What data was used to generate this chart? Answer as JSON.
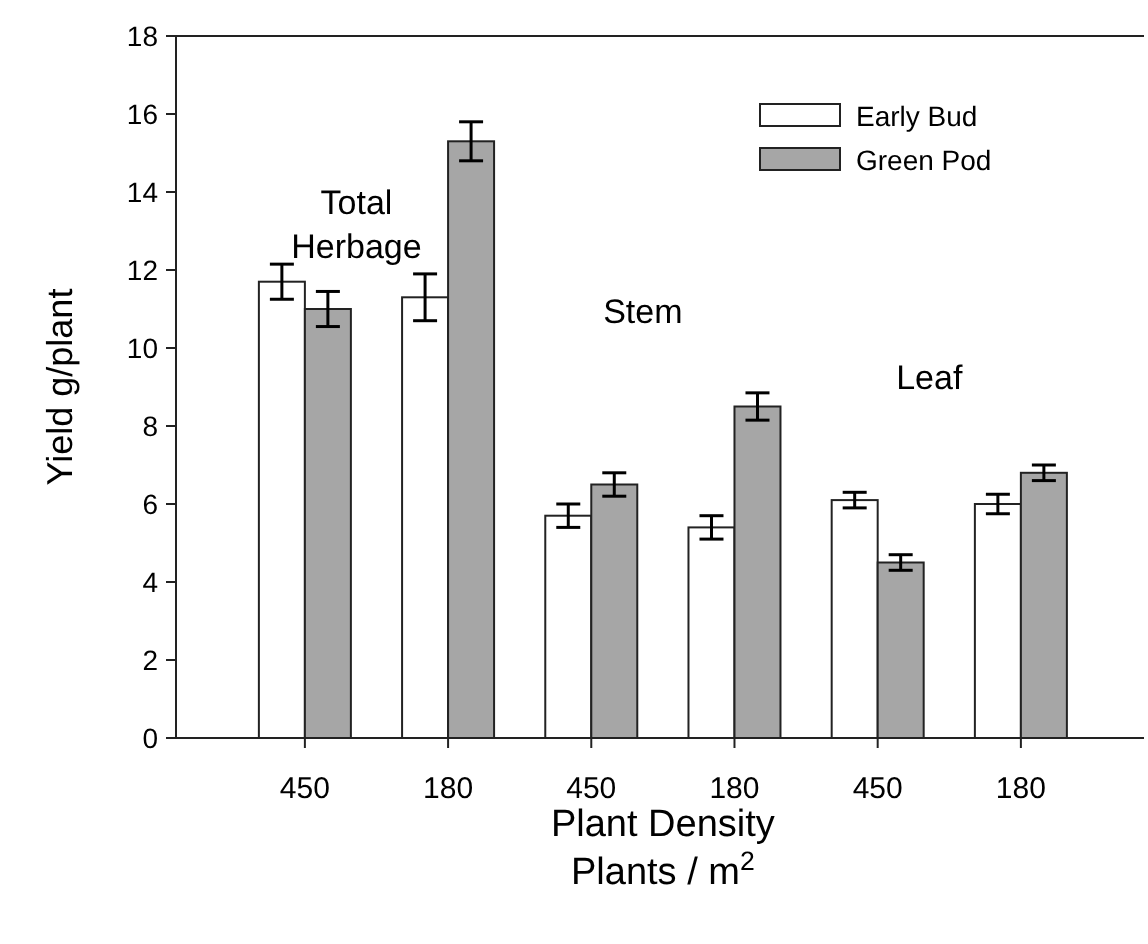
{
  "chart_data": {
    "type": "bar",
    "categories": [
      "450",
      "180",
      "450",
      "180",
      "450",
      "180"
    ],
    "series": [
      {
        "name": "Early Bud",
        "color": "#ffffff",
        "values": [
          11.7,
          11.3,
          5.7,
          5.4,
          6.1,
          6.0
        ],
        "errors": [
          0.45,
          0.6,
          0.3,
          0.3,
          0.2,
          0.25
        ]
      },
      {
        "name": "Green Pod",
        "color": "#a6a6a6",
        "values": [
          11.0,
          15.3,
          6.5,
          8.5,
          4.5,
          6.8
        ],
        "errors": [
          0.45,
          0.5,
          0.3,
          0.35,
          0.2,
          0.2
        ]
      }
    ],
    "ylim": [
      0,
      18
    ],
    "yticks": [
      0,
      2,
      4,
      6,
      8,
      10,
      12,
      14,
      16,
      18
    ],
    "ylabel": "Yield g/plant",
    "xlabel": "Plant Density\nPlants / m$^{2}$",
    "annotations": [
      "Total\nHerbage",
      "Stem",
      "Leaf"
    ],
    "legend": "top right",
    "grid": false
  }
}
